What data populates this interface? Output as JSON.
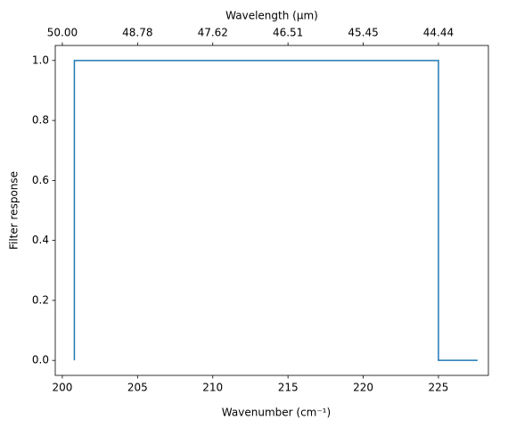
{
  "chart_data": {
    "type": "line",
    "xlabel": "Wavenumber (cm⁻¹)",
    "ylabel": "Filter response",
    "x2label": "Wavelength (μm)",
    "x": [
      200.8,
      200.8,
      225.0,
      225.0,
      227.6
    ],
    "series": [
      {
        "color": "#1f77b4",
        "values": [
          0,
          1,
          1,
          0,
          0
        ]
      }
    ],
    "xlim": [
      199.53,
      228.32
    ],
    "xticks": [
      200,
      205,
      210,
      215,
      220,
      225
    ],
    "x2ticks": [
      {
        "value": 200,
        "label": "50.00"
      },
      {
        "value": 205,
        "label": "48.78"
      },
      {
        "value": 210,
        "label": "47.62"
      },
      {
        "value": 215,
        "label": "46.51"
      },
      {
        "value": 220,
        "label": "45.45"
      },
      {
        "value": 225,
        "label": "44.44"
      }
    ],
    "ylim": [
      -0.05,
      1.05
    ],
    "yticks": [
      {
        "value": 0,
        "label": "0.0"
      },
      {
        "value": 0.2,
        "label": "0.2"
      },
      {
        "value": 0.4,
        "label": "0.4"
      },
      {
        "value": 0.6,
        "label": "0.6"
      },
      {
        "value": 0.8,
        "label": "0.8"
      },
      {
        "value": 1,
        "label": "1.0"
      }
    ]
  }
}
